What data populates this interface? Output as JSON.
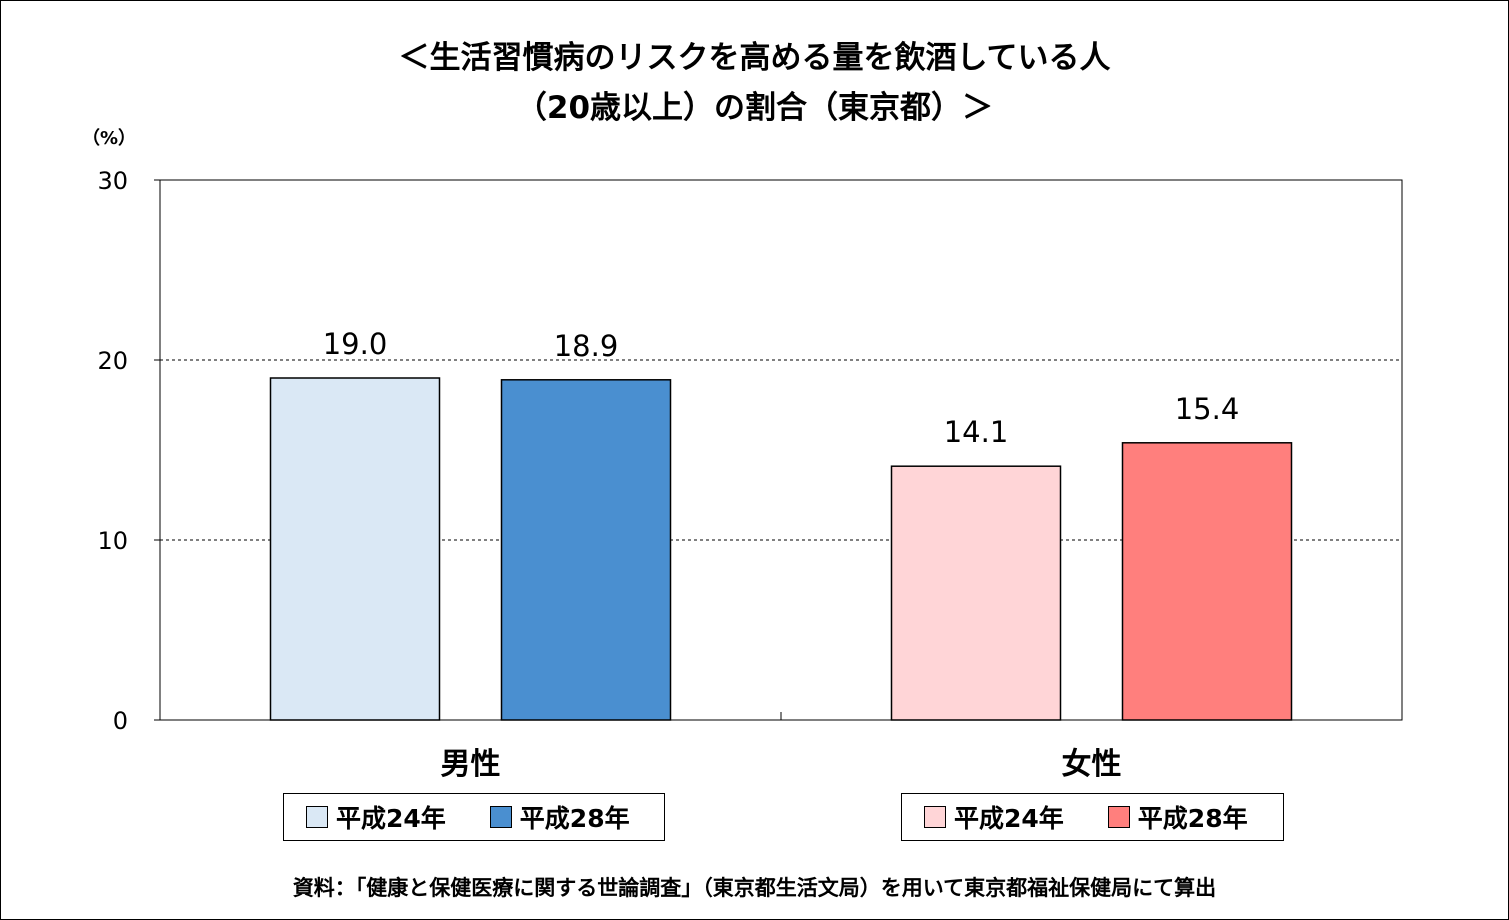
{
  "title_line1": "＜生活習慣病のリスクを高める量を飲酒している人",
  "title_line2": "（20歳以上）の割合（東京都）＞",
  "unit_label": "（%）",
  "source": "資料：「健康と保健医療に関する世論調査」（東京都生活文局）を用いて東京都福祉保健局にて算出",
  "chart_data": {
    "type": "bar",
    "ylim": [
      0,
      30
    ],
    "yticks": [
      0,
      10,
      20,
      30
    ],
    "grid": "dashed horizontal at 10 and 20",
    "groups": [
      {
        "name": "男性",
        "bars": [
          {
            "series": "平成24年",
            "value": 19.0,
            "label": "19.0",
            "color": "#DAE8F5"
          },
          {
            "series": "平成28年",
            "value": 18.9,
            "label": "18.9",
            "color": "#4A8FD0"
          }
        ]
      },
      {
        "name": "女性",
        "bars": [
          {
            "series": "平成24年",
            "value": 14.1,
            "label": "14.1",
            "color": "#FFD5D7"
          },
          {
            "series": "平成28年",
            "value": 15.4,
            "label": "15.4",
            "color": "#FF7F7D"
          }
        ]
      }
    ]
  },
  "legends": [
    {
      "items": [
        {
          "label": "平成24年",
          "color": "#DAE8F5"
        },
        {
          "label": "平成28年",
          "color": "#4A8FD0"
        }
      ]
    },
    {
      "items": [
        {
          "label": "平成24年",
          "color": "#FFD5D7"
        },
        {
          "label": "平成28年",
          "color": "#FF7F7D"
        }
      ]
    }
  ]
}
